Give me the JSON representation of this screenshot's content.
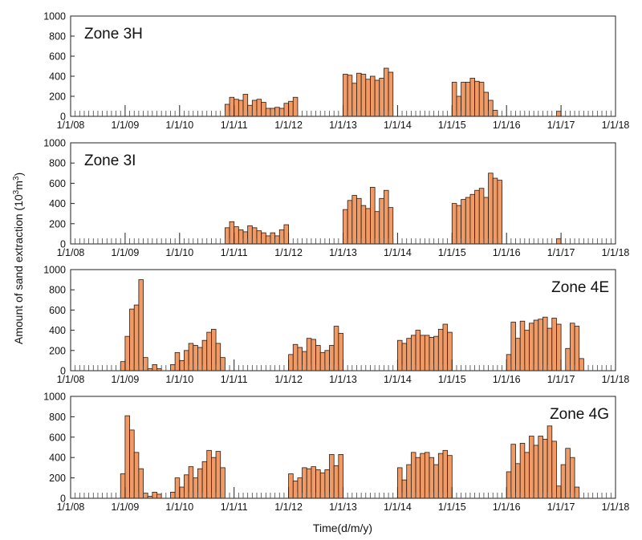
{
  "chart_data": {
    "type": "bar",
    "xlabel": "Time(d/m/y)",
    "ylabel": "Amount of sand extraction (10",
    "ylabel_sup": "3",
    "ylabel_unit": "m",
    "ylabel_sup2": "3",
    "ylabel_end": ")",
    "x_tick_labels": [
      "1/1/08",
      "1/1/09",
      "1/1/10",
      "1/1/11",
      "1/1/12",
      "1/1/13",
      "1/1/14",
      "1/1/15",
      "1/1/16",
      "1/1/17",
      "1/1/18"
    ],
    "x_range_years": [
      2008,
      2018
    ],
    "ylim": [
      0,
      1000
    ],
    "y_ticks": [
      0,
      200,
      400,
      600,
      800,
      1000
    ],
    "colors": {
      "bar": "#f09a66",
      "bar_edge": "#2a1a10",
      "axis": "#222222"
    },
    "panels": [
      {
        "zone": "Zone 3H",
        "label_position": "top-left",
        "series": [
          {
            "start_month": 34,
            "values": [
              120,
              190,
              170,
              160,
              220,
              110,
              160,
              170,
              140,
              80,
              80,
              90,
              80,
              130,
              150,
              190
            ]
          },
          {
            "start_month": 60,
            "values": [
              420,
              410,
              330,
              430,
              420,
              370,
              400,
              360,
              380,
              480,
              440
            ]
          },
          {
            "start_month": 84,
            "values": [
              340,
              200,
              340,
              340,
              380,
              350,
              340,
              240,
              160,
              60
            ]
          },
          {
            "start_month": 107,
            "values": [
              50
            ]
          }
        ]
      },
      {
        "zone": "Zone 3I",
        "label_position": "top-left",
        "series": [
          {
            "start_month": 34,
            "values": [
              160,
              220,
              170,
              140,
              120,
              180,
              160,
              130,
              110,
              80,
              110,
              80,
              140,
              190
            ]
          },
          {
            "start_month": 60,
            "values": [
              340,
              430,
              480,
              450,
              380,
              350,
              560,
              320,
              450,
              530,
              360
            ]
          },
          {
            "start_month": 84,
            "values": [
              400,
              380,
              440,
              460,
              490,
              530,
              550,
              460,
              700,
              650,
              630
            ]
          },
          {
            "start_month": 107,
            "values": [
              50
            ]
          }
        ]
      },
      {
        "zone": "Zone 4E",
        "label_position": "top-right",
        "series": [
          {
            "start_month": 11,
            "values": [
              90,
              340,
              610,
              650,
              900,
              130,
              20,
              60,
              20
            ]
          },
          {
            "start_month": 22,
            "values": [
              60,
              180,
              100,
              200,
              270,
              250,
              230,
              300,
              380,
              410,
              270,
              130
            ]
          },
          {
            "start_month": 48,
            "values": [
              160,
              260,
              230,
              190,
              320,
              310,
              250,
              180,
              200,
              250,
              440,
              370
            ]
          },
          {
            "start_month": 72,
            "values": [
              300,
              270,
              320,
              350,
              400,
              350,
              350,
              330,
              340,
              410,
              460,
              380
            ]
          },
          {
            "start_month": 96,
            "values": [
              160,
              480,
              320,
              490,
              400,
              470,
              500,
              510,
              530,
              420,
              520,
              460
            ]
          },
          {
            "start_month": 109,
            "values": [
              220,
              470,
              440,
              120
            ]
          }
        ]
      },
      {
        "zone": "Zone 4G",
        "label_position": "top-right",
        "series": [
          {
            "start_month": 11,
            "values": [
              240,
              810,
              670,
              450,
              290,
              50,
              20,
              60,
              40
            ]
          },
          {
            "start_month": 22,
            "values": [
              60,
              200,
              110,
              230,
              310,
              200,
              290,
              360,
              470,
              400,
              460,
              300
            ]
          },
          {
            "start_month": 48,
            "values": [
              240,
              170,
              200,
              300,
              290,
              310,
              280,
              250,
              280,
              430,
              320,
              430
            ]
          },
          {
            "start_month": 72,
            "values": [
              300,
              180,
              330,
              450,
              400,
              440,
              450,
              400,
              330,
              440,
              470,
              420
            ]
          },
          {
            "start_month": 96,
            "values": [
              260,
              530,
              340,
              540,
              450,
              610,
              520,
              610,
              580,
              710,
              560,
              120
            ]
          },
          {
            "start_month": 108,
            "values": [
              330,
              490,
              400,
              110
            ]
          }
        ]
      }
    ]
  }
}
